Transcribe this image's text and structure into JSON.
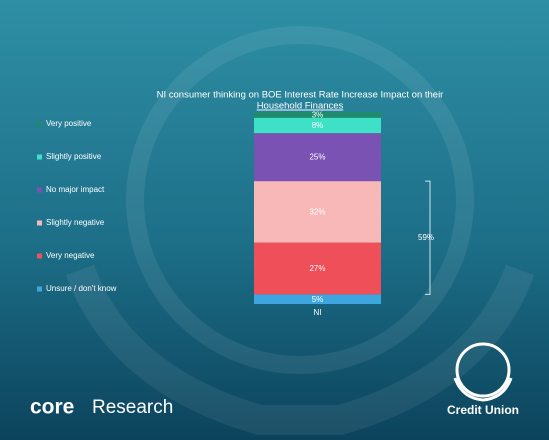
{
  "chart_data": {
    "type": "stacked-bar",
    "title": [
      "NI consumer thinking on BOE Interest Rate Increase Impact on their",
      "Household Finances"
    ],
    "categories": [
      "NI"
    ],
    "series": [
      {
        "name": "Very positive",
        "color": "#1e8c6c",
        "values": [
          3
        ],
        "value_labels": [
          "3%"
        ]
      },
      {
        "name": "Slightly positive",
        "color": "#3ee0c6",
        "values": [
          8
        ],
        "value_labels": [
          "8%"
        ]
      },
      {
        "name": "No major impact",
        "color": "#7a52b3",
        "values": [
          25
        ],
        "value_labels": [
          "25%"
        ]
      },
      {
        "name": "Slightly negative",
        "color": "#f8b8b8",
        "values": [
          32
        ],
        "value_labels": [
          "32%"
        ]
      },
      {
        "name": "Very negative",
        "color": "#ef4f59",
        "values": [
          27
        ],
        "value_labels": [
          "27%"
        ]
      },
      {
        "name": "Unsure / don't know",
        "color": "#3ea6df",
        "values": [
          5
        ],
        "value_labels": [
          "5%"
        ]
      }
    ],
    "bracket": {
      "value": 59,
      "label": "59%"
    },
    "logos": [
      "core",
      "Research",
      "Credit Union"
    ]
  }
}
